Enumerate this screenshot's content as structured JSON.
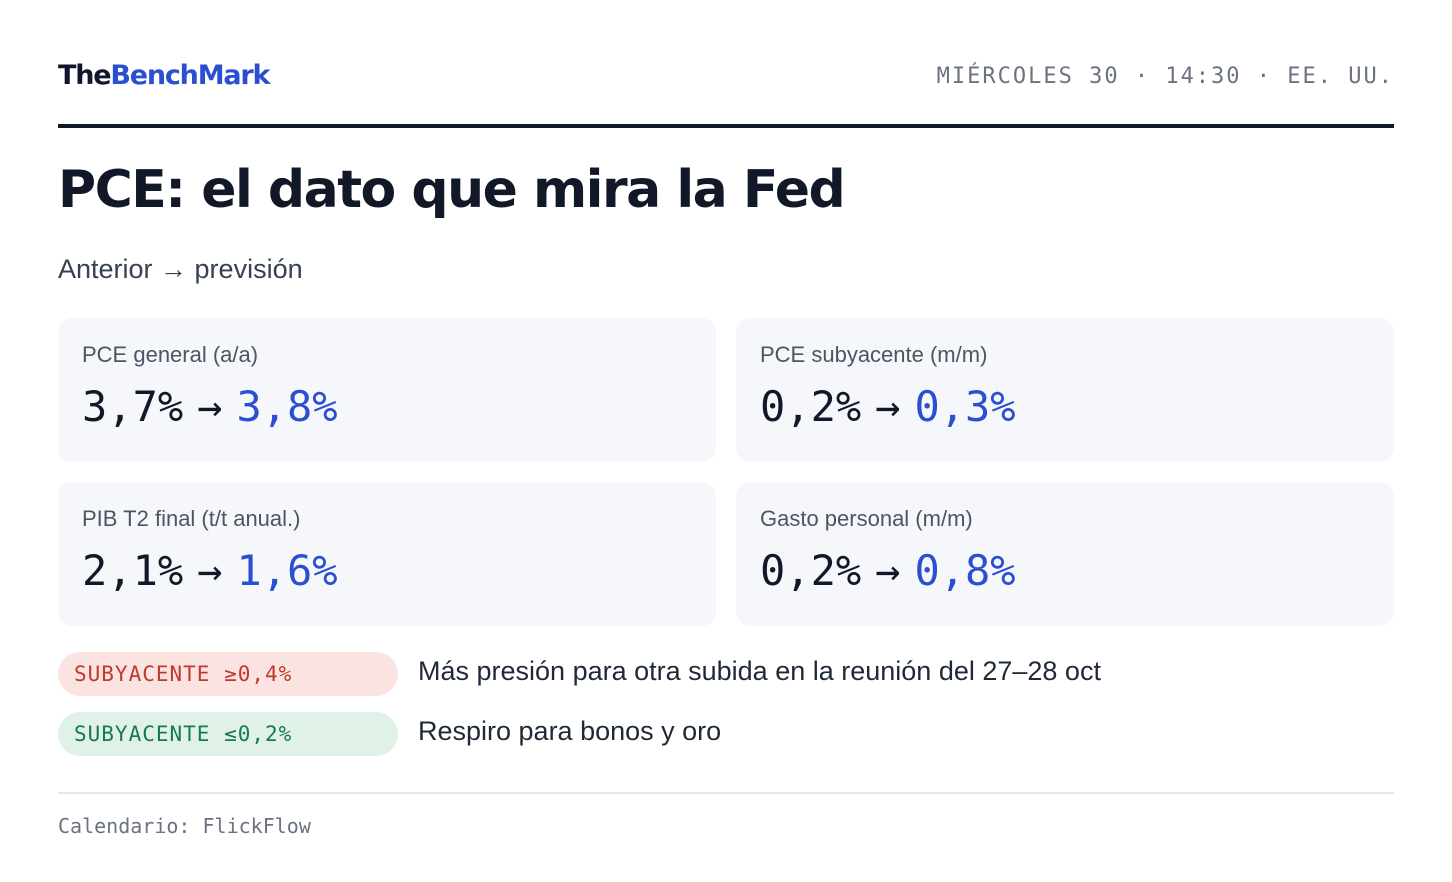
{
  "header": {
    "brand_part1": "The",
    "brand_part2": "BenchMark",
    "dateline": "MIÉRCOLES 30 · 14:30 · EE. UU."
  },
  "title": "PCE: el dato que mira la Fed",
  "subtitle": "Anterior → previsión",
  "arrow": "→",
  "cards": [
    {
      "label": "PCE general (a/a)",
      "previous": "3,7%",
      "forecast": "3,8%"
    },
    {
      "label": "PCE subyacente (m/m)",
      "previous": "0,2%",
      "forecast": "0,3%"
    },
    {
      "label": "PIB T2 final (t/t anual.)",
      "previous": "2,1%",
      "forecast": "1,6%"
    },
    {
      "label": "Gasto personal (m/m)",
      "previous": "0,2%",
      "forecast": "0,8%"
    }
  ],
  "scenarios": [
    {
      "badge": "SUBYACENTE ≥0,4%",
      "text": "Más presión para otra subida en la reunión del 27–28 oct",
      "color": "#c0392b"
    },
    {
      "badge": "SUBYACENTE ≤0,2%",
      "text": "Respiro para bonos y oro",
      "color": "#18794e"
    }
  ],
  "footer": "Calendario: FlickFlow",
  "colors": {
    "accent": "#2b4fd1",
    "text": "#111827",
    "card_bg": "#f6f7fb"
  }
}
